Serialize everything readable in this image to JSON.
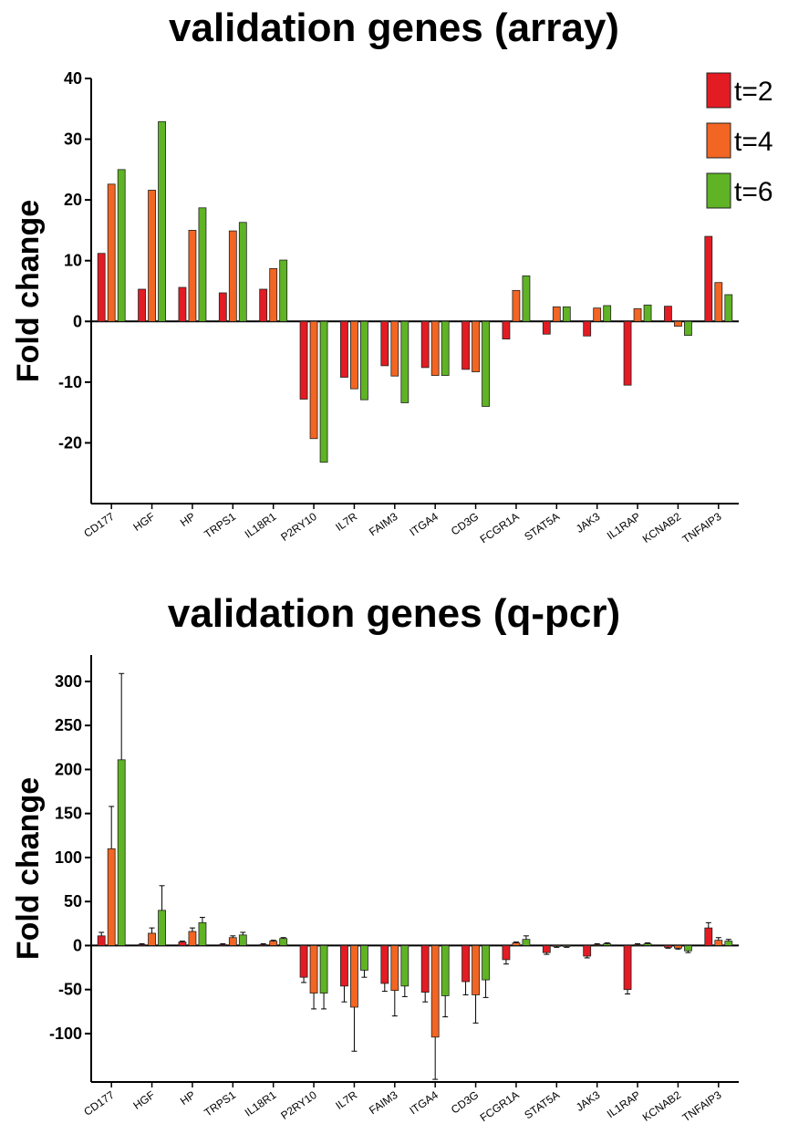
{
  "colors": {
    "t2": "#e31b23",
    "t4": "#f26522",
    "t6": "#5fb324"
  },
  "chart_data": [
    {
      "type": "bar",
      "title": "validation genes (array)",
      "xlabel": "",
      "ylabel": "Fold change",
      "ylim": [
        -30,
        40
      ],
      "yticks": [
        -20,
        -10,
        0,
        10,
        20,
        30,
        40
      ],
      "grid": false,
      "legend_position": "top-right",
      "categories": [
        "CD177",
        "HGF",
        "HP",
        "TRPS1",
        "IL18R1",
        "P2RY10",
        "IL7R",
        "FAIM3",
        "ITGA4",
        "CD3G",
        "FCGR1A",
        "STAT5A",
        "JAK3",
        "IL1RAP",
        "KCNAB2",
        "TNFAIP3"
      ],
      "series": [
        {
          "name": "t=2",
          "values": [
            11.2,
            5.3,
            5.6,
            4.7,
            5.3,
            -12.8,
            -9.2,
            -7.3,
            -7.6,
            -7.9,
            -2.9,
            -2.1,
            -2.4,
            -10.5,
            2.5,
            14.0
          ]
        },
        {
          "name": "t=4",
          "values": [
            22.6,
            21.6,
            15.0,
            14.9,
            8.7,
            -19.3,
            -11.1,
            -9.0,
            -8.9,
            -8.3,
            5.1,
            2.4,
            2.2,
            2.1,
            -0.8,
            6.4
          ]
        },
        {
          "name": "t=6",
          "values": [
            25.0,
            32.9,
            18.7,
            16.3,
            10.1,
            -23.2,
            -12.9,
            -13.4,
            -8.9,
            -14.0,
            7.5,
            2.4,
            2.6,
            2.7,
            -2.3,
            4.4
          ]
        }
      ]
    },
    {
      "type": "bar",
      "title": "validation genes (q-pcr)",
      "xlabel": "",
      "ylabel": "Fold change",
      "ylim": [
        -155,
        330
      ],
      "yticks": [
        -100,
        -50,
        0,
        50,
        100,
        150,
        200,
        250,
        300
      ],
      "grid": false,
      "categories": [
        "CD177",
        "HGF",
        "HP",
        "TRPS1",
        "IL18R1",
        "P2RY10",
        "IL7R",
        "FAIM3",
        "ITGA4",
        "CD3G",
        "FCGR1A",
        "STAT5A",
        "JAK3",
        "IL1RAP",
        "KCNAB2",
        "TNFAIP3"
      ],
      "series": [
        {
          "name": "t=2",
          "values": [
            11,
            1,
            4,
            1,
            1,
            -36,
            -46,
            -43,
            -53,
            -41,
            -16,
            -8,
            -12,
            -50,
            -2,
            20
          ],
          "errors": [
            4,
            1,
            1,
            1,
            1,
            6,
            18,
            9,
            11,
            15,
            5,
            2,
            2,
            5,
            1,
            6
          ]
        },
        {
          "name": "t=4",
          "values": [
            110,
            14,
            16,
            9,
            5,
            -54,
            -70,
            -51,
            -104,
            -56,
            3,
            -1,
            1,
            1,
            -3,
            6
          ],
          "errors": [
            48,
            6,
            4,
            2,
            1,
            18,
            50,
            29,
            48,
            32,
            1,
            1,
            1,
            1,
            1,
            3
          ]
        },
        {
          "name": "t=6",
          "values": [
            211,
            40,
            26,
            12,
            8,
            -54,
            -28,
            -46,
            -57,
            -39,
            7,
            -1,
            2,
            2,
            -6,
            5
          ],
          "errors": [
            98,
            28,
            6,
            3,
            1,
            18,
            8,
            12,
            24,
            20,
            4,
            1,
            1,
            1,
            2,
            2
          ]
        }
      ]
    }
  ]
}
